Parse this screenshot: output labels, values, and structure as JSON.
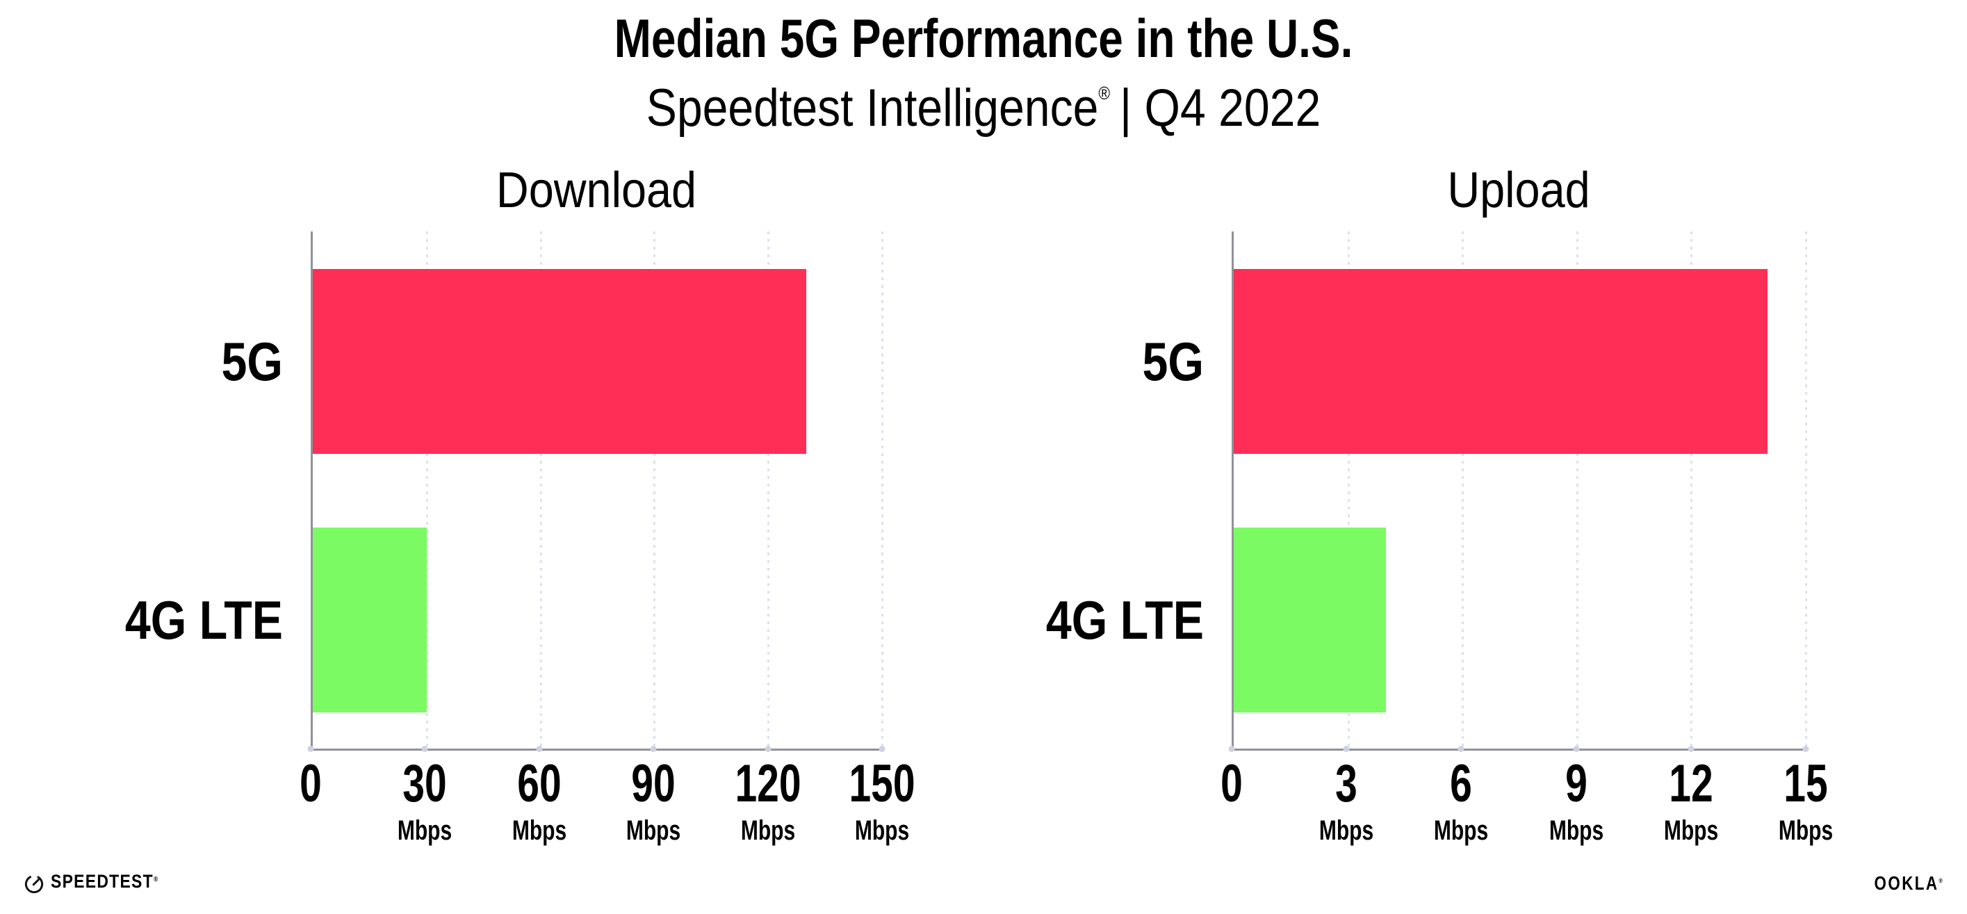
{
  "header": {
    "title": "Median 5G Performance in the U.S.",
    "subtitle_brand": "Speedtest Intelligence",
    "subtitle_reg": "®",
    "subtitle_rest": "| Q4 2022"
  },
  "chart_data": [
    {
      "type": "bar",
      "orientation": "horizontal",
      "title": "Download",
      "categories": [
        "5G",
        "4G LTE"
      ],
      "values": [
        130,
        30
      ],
      "unit": "Mbps",
      "xlim": [
        0,
        150
      ],
      "xticks": [
        0,
        30,
        60,
        90,
        120,
        150
      ],
      "tick_unit": "Mbps",
      "grid": "dotted-vertical",
      "legend": "none",
      "bar_colors": [
        "#ff2e56",
        "#7cfa63"
      ]
    },
    {
      "type": "bar",
      "orientation": "horizontal",
      "title": "Upload",
      "categories": [
        "5G",
        "4G LTE"
      ],
      "values": [
        14,
        4
      ],
      "unit": "Mbps",
      "xlim": [
        0,
        15
      ],
      "xticks": [
        0,
        3,
        6,
        9,
        12,
        15
      ],
      "tick_unit": "Mbps",
      "grid": "dotted-vertical",
      "legend": "none",
      "bar_colors": [
        "#ff2e56",
        "#7cfa63"
      ]
    }
  ],
  "footer": {
    "speedtest_label": "SPEEDTEST",
    "speedtest_reg": "®",
    "speedtest_icon": "speedtest-gauge-icon",
    "ookla_label": "OOKLA",
    "ookla_reg": "®"
  },
  "colors": {
    "bar_5g": "#ff2e56",
    "bar_4g_lte": "#7cfa63",
    "axis": "#919197",
    "gridline": "#dfe0eb",
    "text": "#000000",
    "background": "#ffffff"
  }
}
